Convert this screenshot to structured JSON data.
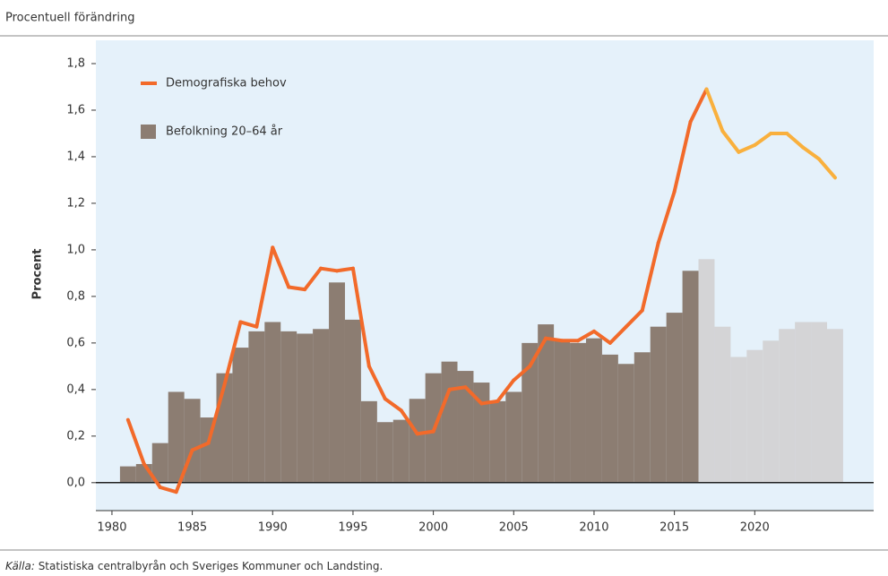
{
  "chart_data": {
    "type": "bar_line",
    "header": "Procentuell förändring",
    "ylabel": "Procent",
    "source_prefix": "Källa:",
    "source": "Statistiska centralbyrån och Sveriges Kommuner och Landsting.",
    "x": [
      1981,
      1982,
      1983,
      1984,
      1985,
      1986,
      1987,
      1988,
      1989,
      1990,
      1991,
      1992,
      1993,
      1994,
      1995,
      1996,
      1997,
      1998,
      1999,
      2000,
      2001,
      2002,
      2003,
      2004,
      2005,
      2006,
      2007,
      2008,
      2009,
      2010,
      2011,
      2012,
      2013,
      2014,
      2015,
      2016,
      2017,
      2018,
      2019,
      2020,
      2021,
      2022,
      2023,
      2024,
      2025
    ],
    "forecast_start": 2017,
    "series": [
      {
        "name": "Befolkning 20–64 år",
        "kind": "bar",
        "color": "#8c7d72",
        "forecast_color": "#d4d4d6",
        "values": [
          0.07,
          0.08,
          0.17,
          0.39,
          0.36,
          0.28,
          0.47,
          0.58,
          0.65,
          0.69,
          0.65,
          0.64,
          0.66,
          0.86,
          0.7,
          0.35,
          0.26,
          0.27,
          0.36,
          0.47,
          0.52,
          0.48,
          0.43,
          0.35,
          0.39,
          0.6,
          0.68,
          0.61,
          0.6,
          0.62,
          0.55,
          0.51,
          0.56,
          0.67,
          0.73,
          0.91,
          0.96,
          0.67,
          0.54,
          0.57,
          0.61,
          0.66,
          0.69,
          0.69,
          0.66
        ]
      },
      {
        "name": "Demografiska behov",
        "kind": "line",
        "color": "#f26a2a",
        "forecast_color": "#f9b03d",
        "values": [
          0.27,
          0.08,
          -0.02,
          -0.04,
          0.14,
          0.17,
          0.42,
          0.69,
          0.67,
          1.01,
          0.84,
          0.83,
          0.92,
          0.91,
          0.92,
          0.5,
          0.36,
          0.31,
          0.21,
          0.22,
          0.4,
          0.41,
          0.34,
          0.35,
          0.44,
          0.5,
          0.62,
          0.61,
          0.61,
          0.65,
          0.6,
          0.67,
          0.74,
          1.03,
          1.25,
          1.55,
          1.69,
          1.51,
          1.42,
          1.45,
          1.5,
          1.5,
          1.44,
          1.39,
          1.31
        ]
      }
    ],
    "legend_order": [
      1,
      0
    ],
    "legend_position": "upper left",
    "xlim": [
      1979,
      2027.4
    ],
    "xticks": [
      1980,
      1985,
      1990,
      1995,
      2000,
      2005,
      2010,
      2015,
      2020
    ],
    "ylim": [
      -0.12,
      1.9
    ],
    "yticks": [
      {
        "value": 0,
        "label": "0,0"
      },
      {
        "value": 0.2,
        "label": "0,2"
      },
      {
        "value": 0.4,
        "label": "0,4"
      },
      {
        "value": 0.6,
        "label": "0,6"
      },
      {
        "value": 0.8,
        "label": "0,8"
      },
      {
        "value": 1.0,
        "label": "1,0"
      },
      {
        "value": 1.2,
        "label": "1,2"
      },
      {
        "value": 1.4,
        "label": "1,4"
      },
      {
        "value": 1.6,
        "label": "1,6"
      },
      {
        "value": 1.8,
        "label": "1,8"
      }
    ],
    "zero_line": true,
    "background": "#e5f1fa"
  }
}
